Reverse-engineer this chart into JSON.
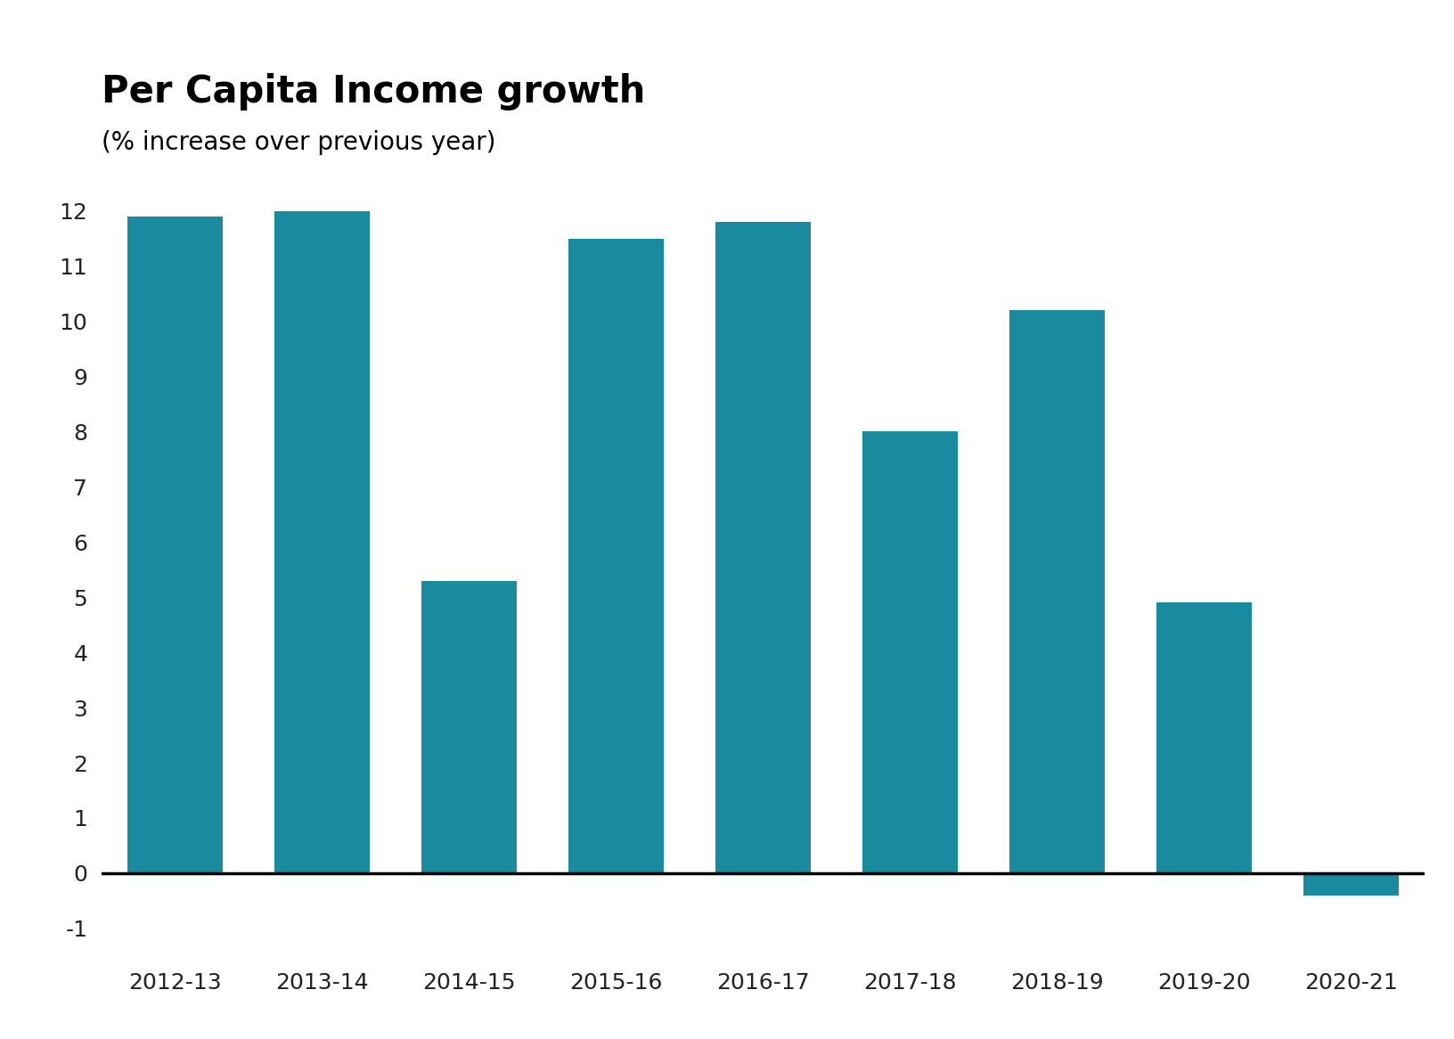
{
  "title": "Per Capita Income growth",
  "subtitle": "(% increase over previous year)",
  "categories": [
    "2012-13",
    "2013-14",
    "2014-15",
    "2015-16",
    "2016-17",
    "2017-18",
    "2018-19",
    "2019-20",
    "2020-21"
  ],
  "values": [
    11.9,
    12.0,
    5.3,
    11.5,
    11.8,
    8.0,
    10.2,
    4.9,
    -0.4
  ],
  "bar_color": "#1a8a9e",
  "background_color": "#ffffff",
  "ylim": [
    -1.5,
    13
  ],
  "yticks": [
    -1,
    0,
    1,
    2,
    3,
    4,
    5,
    6,
    7,
    8,
    9,
    10,
    11,
    12
  ],
  "title_fontsize": 30,
  "subtitle_fontsize": 20,
  "tick_fontsize": 18,
  "axis_label_color": "#222222"
}
